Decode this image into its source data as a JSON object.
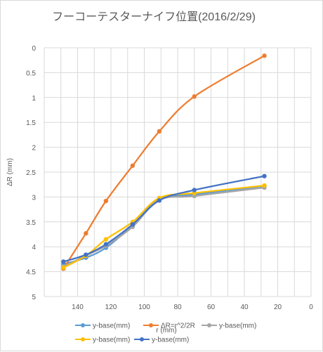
{
  "chart_data": {
    "type": "line",
    "title": "フーコーテスターナイフ位置(2016/2/29)",
    "xlabel": "r (mm)",
    "ylabel": "ΔR (mm)",
    "xlim": [
      160,
      0
    ],
    "ylim": [
      0,
      5
    ],
    "y_reversed": true,
    "x_reversed": true,
    "xticks": [
      140,
      120,
      100,
      80,
      60,
      40,
      20,
      0
    ],
    "yticks": [
      0,
      0.5,
      1,
      1.5,
      2,
      2.5,
      3,
      3.5,
      4,
      4.5,
      5
    ],
    "xtick_labels": [
      "140",
      "120",
      "100",
      "80",
      "60",
      "40",
      "20",
      "0"
    ],
    "ytick_labels": [
      "0",
      "0.5",
      "1",
      "1.5",
      "2",
      "2.5",
      "3",
      "3.5",
      "4",
      "4.5",
      "5"
    ],
    "grid": true,
    "legend_position": "bottom",
    "series": [
      {
        "name": "y-base(mm)",
        "color": "#5b9bd5",
        "x": [
          148.5,
          135,
          123,
          107,
          91,
          70,
          28
        ],
        "y": [
          4.35,
          4.22,
          4.02,
          3.57,
          3.05,
          2.95,
          2.78
        ]
      },
      {
        "name": "ΔR=r^2/2R",
        "color": "#ed7d31",
        "x": [
          148.5,
          135,
          123,
          107,
          91,
          70,
          28
        ],
        "y": [
          4.44,
          3.73,
          3.08,
          2.37,
          1.68,
          0.98,
          0.16
        ]
      },
      {
        "name": "y-base(mm)",
        "color": "#a5a5a5",
        "x": [
          148.5,
          135,
          123,
          107,
          91,
          70,
          28
        ],
        "y": [
          4.4,
          4.18,
          3.98,
          3.6,
          3.06,
          2.98,
          2.81
        ]
      },
      {
        "name": "y-base(mm)",
        "color": "#ffc000",
        "x": [
          148.5,
          135,
          123,
          107,
          91,
          70,
          28
        ],
        "y": [
          4.42,
          4.18,
          3.85,
          3.5,
          3.02,
          2.92,
          2.77
        ]
      },
      {
        "name": "y-base(mm)",
        "color": "#4472c4",
        "x": [
          148.5,
          135,
          123,
          107,
          91,
          70,
          28
        ],
        "y": [
          4.3,
          4.16,
          3.95,
          3.55,
          3.07,
          2.86,
          2.58
        ]
      }
    ]
  }
}
